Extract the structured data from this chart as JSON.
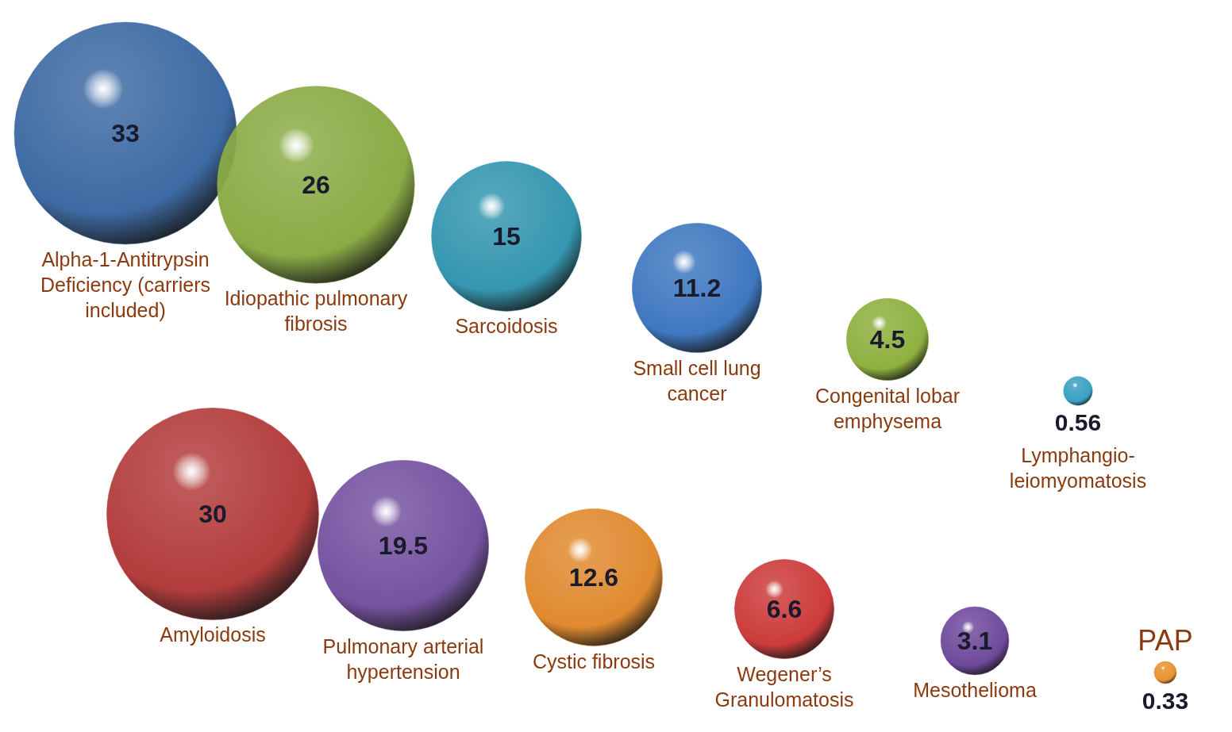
{
  "chart_data": {
    "type": "other",
    "categories": [
      "Alpha-1-Antitrypsin Deficiency (carriers included)",
      "Idiopathic pulmonary fibrosis",
      "Sarcoidosis",
      "Small cell lung cancer",
      "Congenital lobar emphysema",
      "Lymphangio-leiomyomatosis",
      "Amyloidosis",
      "Pulmonary arterial hypertension",
      "Cystic fibrosis",
      "Wegener’s Granulomatosis",
      "Mesothelioma",
      "PAP"
    ],
    "values": [
      33,
      26,
      15,
      11.2,
      4.5,
      0.56,
      30,
      19.5,
      12.6,
      6.6,
      3.1,
      0.33
    ],
    "colors": [
      "#3d6aa3",
      "#8aab45",
      "#3496b0",
      "#3f78c0",
      "#8eb040",
      "#3aa0c0",
      "#b33c3c",
      "#7553a0",
      "#e08a30",
      "#cc3b3b",
      "#6f4a9c",
      "#e8922e"
    ],
    "data_labels": true
  }
}
